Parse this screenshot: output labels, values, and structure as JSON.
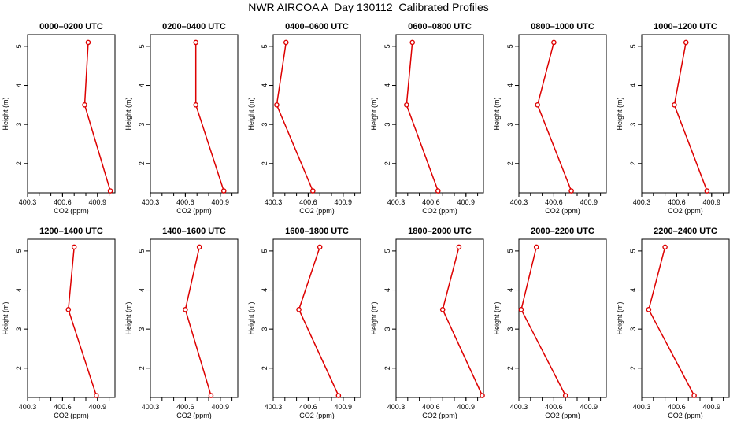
{
  "title": "NWR AIRCOA A  Day 130112  Calibrated Profiles",
  "colors": {
    "line": "#dd0000",
    "axis": "#000000",
    "background": "#ffffff"
  },
  "chart_data": [
    {
      "type": "line",
      "title": "0000–0200 UTC",
      "xlabel": "CO2 (ppm)",
      "ylabel": "Height (m)",
      "xlim": [
        400.3,
        401.05
      ],
      "ylim": [
        1.25,
        5.3
      ],
      "xticks": [
        "400.3",
        "400.6",
        "400.9"
      ],
      "yticks": [
        "2",
        "3",
        "4",
        "5"
      ],
      "series": [
        {
          "x": [
            400.82,
            400.79,
            401.01
          ],
          "y": [
            5.1,
            3.5,
            1.3
          ]
        }
      ]
    },
    {
      "type": "line",
      "title": "0200–0400 UTC",
      "xlabel": "CO2 (ppm)",
      "ylabel": "Height (m)",
      "xlim": [
        400.3,
        401.05
      ],
      "ylim": [
        1.25,
        5.3
      ],
      "xticks": [
        "400.3",
        "400.6",
        "400.9"
      ],
      "yticks": [
        "2",
        "3",
        "4",
        "5"
      ],
      "series": [
        {
          "x": [
            400.69,
            400.69,
            400.93
          ],
          "y": [
            5.1,
            3.5,
            1.3
          ]
        }
      ]
    },
    {
      "type": "line",
      "title": "0400–0600 UTC",
      "xlabel": "CO2 (ppm)",
      "ylabel": "Height (m)",
      "xlim": [
        400.3,
        401.05
      ],
      "ylim": [
        1.25,
        5.3
      ],
      "xticks": [
        "400.3",
        "400.6",
        "400.9"
      ],
      "yticks": [
        "2",
        "3",
        "4",
        "5"
      ],
      "series": [
        {
          "x": [
            400.41,
            400.33,
            400.64
          ],
          "y": [
            5.1,
            3.5,
            1.3
          ]
        }
      ]
    },
    {
      "type": "line",
      "title": "0600–0800 UTC",
      "xlabel": "CO2 (ppm)",
      "ylabel": "Height (m)",
      "xlim": [
        400.3,
        401.05
      ],
      "ylim": [
        1.25,
        5.3
      ],
      "xticks": [
        "400.3",
        "400.6",
        "400.9"
      ],
      "yticks": [
        "2",
        "3",
        "4",
        "5"
      ],
      "series": [
        {
          "x": [
            400.44,
            400.39,
            400.66
          ],
          "y": [
            5.1,
            3.5,
            1.3
          ]
        }
      ]
    },
    {
      "type": "line",
      "title": "0800–1000 UTC",
      "xlabel": "CO2 (ppm)",
      "ylabel": "Height (m)",
      "xlim": [
        400.3,
        401.05
      ],
      "ylim": [
        1.25,
        5.3
      ],
      "xticks": [
        "400.3",
        "400.6",
        "400.9"
      ],
      "yticks": [
        "2",
        "3",
        "4",
        "5"
      ],
      "series": [
        {
          "x": [
            400.6,
            400.46,
            400.75
          ],
          "y": [
            5.1,
            3.5,
            1.3
          ]
        }
      ]
    },
    {
      "type": "line",
      "title": "1000–1200 UTC",
      "xlabel": "CO2 (ppm)",
      "ylabel": "Height (m)",
      "xlim": [
        400.3,
        401.05
      ],
      "ylim": [
        1.25,
        5.3
      ],
      "xticks": [
        "400.3",
        "400.6",
        "400.9"
      ],
      "yticks": [
        "2",
        "3",
        "4",
        "5"
      ],
      "series": [
        {
          "x": [
            400.68,
            400.58,
            400.86
          ],
          "y": [
            5.1,
            3.5,
            1.3
          ]
        }
      ]
    },
    {
      "type": "line",
      "title": "1200–1400 UTC",
      "xlabel": "CO2 (ppm)",
      "ylabel": "Height (m)",
      "xlim": [
        400.3,
        401.05
      ],
      "ylim": [
        1.25,
        5.3
      ],
      "xticks": [
        "400.3",
        "400.6",
        "400.9"
      ],
      "yticks": [
        "2",
        "3",
        "4",
        "5"
      ],
      "series": [
        {
          "x": [
            400.7,
            400.65,
            400.89
          ],
          "y": [
            5.1,
            3.5,
            1.3
          ]
        }
      ]
    },
    {
      "type": "line",
      "title": "1400–1600 UTC",
      "xlabel": "CO2 (ppm)",
      "ylabel": "Height (m)",
      "xlim": [
        400.3,
        401.05
      ],
      "ylim": [
        1.25,
        5.3
      ],
      "xticks": [
        "400.3",
        "400.6",
        "400.9"
      ],
      "yticks": [
        "2",
        "3",
        "4",
        "5"
      ],
      "series": [
        {
          "x": [
            400.72,
            400.6,
            400.82
          ],
          "y": [
            5.1,
            3.5,
            1.3
          ]
        }
      ]
    },
    {
      "type": "line",
      "title": "1600–1800 UTC",
      "xlabel": "CO2 (ppm)",
      "ylabel": "Height (m)",
      "xlim": [
        400.3,
        401.05
      ],
      "ylim": [
        1.25,
        5.3
      ],
      "xticks": [
        "400.3",
        "400.6",
        "400.9"
      ],
      "yticks": [
        "2",
        "3",
        "4",
        "5"
      ],
      "series": [
        {
          "x": [
            400.7,
            400.52,
            400.86
          ],
          "y": [
            5.1,
            3.5,
            1.3
          ]
        }
      ]
    },
    {
      "type": "line",
      "title": "1800–2000 UTC",
      "xlabel": "CO2 (ppm)",
      "ylabel": "Height (m)",
      "xlim": [
        400.3,
        401.05
      ],
      "ylim": [
        1.25,
        5.3
      ],
      "xticks": [
        "400.3",
        "400.6",
        "400.9"
      ],
      "yticks": [
        "2",
        "3",
        "4",
        "5"
      ],
      "series": [
        {
          "x": [
            400.84,
            400.7,
            401.04
          ],
          "y": [
            5.1,
            3.5,
            1.3
          ]
        }
      ]
    },
    {
      "type": "line",
      "title": "2000–2200 UTC",
      "xlabel": "CO2 (ppm)",
      "ylabel": "Height (m)",
      "xlim": [
        400.3,
        401.05
      ],
      "ylim": [
        1.25,
        5.3
      ],
      "xticks": [
        "400.3",
        "400.6",
        "400.9"
      ],
      "yticks": [
        "2",
        "3",
        "4",
        "5"
      ],
      "series": [
        {
          "x": [
            400.45,
            400.32,
            400.7
          ],
          "y": [
            5.1,
            3.5,
            1.3
          ]
        }
      ]
    },
    {
      "type": "line",
      "title": "2200–2400 UTC",
      "xlabel": "CO2 (ppm)",
      "ylabel": "Height (m)",
      "xlim": [
        400.3,
        401.05
      ],
      "ylim": [
        1.25,
        5.3
      ],
      "xticks": [
        "400.3",
        "400.6",
        "400.9"
      ],
      "yticks": [
        "2",
        "3",
        "4",
        "5"
      ],
      "series": [
        {
          "x": [
            400.5,
            400.36,
            400.75
          ],
          "y": [
            5.1,
            3.5,
            1.3
          ]
        }
      ]
    }
  ]
}
